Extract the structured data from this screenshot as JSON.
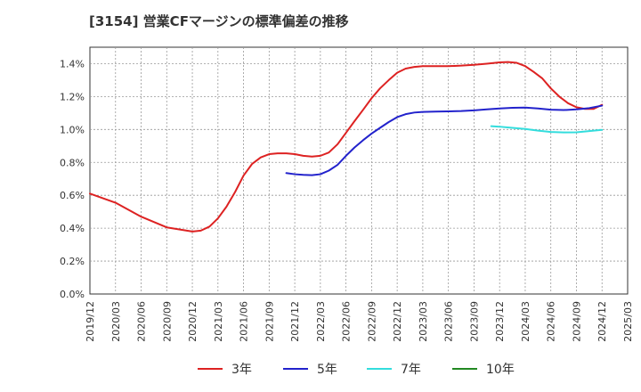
{
  "title": "[3154]  営業CFマージンの標準偏差の推移",
  "chart_data": {
    "type": "line",
    "x_labels": [
      "2019/12",
      "2020/03",
      "2020/06",
      "2020/09",
      "2020/12",
      "2021/03",
      "2021/06",
      "2021/09",
      "2021/12",
      "2022/03",
      "2022/06",
      "2022/09",
      "2022/12",
      "2023/03",
      "2023/06",
      "2023/09",
      "2023/12",
      "2024/03",
      "2024/06",
      "2024/09",
      "2024/12",
      "2025/03"
    ],
    "y_ticks": [
      "0.0%",
      "0.2%",
      "0.4%",
      "0.6%",
      "0.8%",
      "1.0%",
      "1.2%",
      "1.4%"
    ],
    "ylim": [
      0,
      1.5
    ],
    "grid": true,
    "legend_position": "bottom",
    "series": [
      {
        "name": "3年",
        "color": "#dd2222",
        "points": [
          [
            0,
            0.61
          ],
          [
            1,
            0.555
          ],
          [
            2,
            0.47
          ],
          [
            3,
            0.405
          ],
          [
            4,
            0.38
          ],
          [
            4.33,
            0.385
          ],
          [
            4.67,
            0.41
          ],
          [
            5,
            0.46
          ],
          [
            5.33,
            0.53
          ],
          [
            5.67,
            0.62
          ],
          [
            6,
            0.72
          ],
          [
            6.33,
            0.79
          ],
          [
            6.67,
            0.83
          ],
          [
            7,
            0.85
          ],
          [
            7.33,
            0.855
          ],
          [
            7.67,
            0.855
          ],
          [
            8,
            0.85
          ],
          [
            8.33,
            0.84
          ],
          [
            8.67,
            0.835
          ],
          [
            9,
            0.84
          ],
          [
            9.33,
            0.86
          ],
          [
            9.67,
            0.91
          ],
          [
            10,
            0.98
          ],
          [
            10.33,
            1.05
          ],
          [
            10.67,
            1.12
          ],
          [
            11,
            1.19
          ],
          [
            11.33,
            1.25
          ],
          [
            11.67,
            1.3
          ],
          [
            12,
            1.345
          ],
          [
            12.33,
            1.37
          ],
          [
            12.67,
            1.38
          ],
          [
            13,
            1.385
          ],
          [
            13.5,
            1.385
          ],
          [
            14,
            1.385
          ],
          [
            14.5,
            1.388
          ],
          [
            15,
            1.393
          ],
          [
            15.5,
            1.4
          ],
          [
            16,
            1.408
          ],
          [
            16.33,
            1.41
          ],
          [
            16.67,
            1.405
          ],
          [
            17,
            1.385
          ],
          [
            17.33,
            1.35
          ],
          [
            17.67,
            1.31
          ],
          [
            18,
            1.25
          ],
          [
            18.33,
            1.2
          ],
          [
            18.67,
            1.16
          ],
          [
            19,
            1.135
          ],
          [
            19.33,
            1.125
          ],
          [
            19.67,
            1.125
          ],
          [
            20,
            1.15
          ]
        ]
      },
      {
        "name": "5年",
        "color": "#2222cc",
        "points": [
          [
            7.67,
            0.735
          ],
          [
            8,
            0.728
          ],
          [
            8.33,
            0.724
          ],
          [
            8.67,
            0.722
          ],
          [
            9,
            0.728
          ],
          [
            9.33,
            0.75
          ],
          [
            9.67,
            0.785
          ],
          [
            10,
            0.84
          ],
          [
            10.33,
            0.89
          ],
          [
            10.67,
            0.935
          ],
          [
            11,
            0.975
          ],
          [
            11.33,
            1.01
          ],
          [
            11.67,
            1.045
          ],
          [
            12,
            1.075
          ],
          [
            12.33,
            1.093
          ],
          [
            12.67,
            1.103
          ],
          [
            13,
            1.107
          ],
          [
            13.5,
            1.109
          ],
          [
            14,
            1.11
          ],
          [
            14.5,
            1.112
          ],
          [
            15,
            1.116
          ],
          [
            15.5,
            1.122
          ],
          [
            16,
            1.128
          ],
          [
            16.5,
            1.132
          ],
          [
            17,
            1.133
          ],
          [
            17.5,
            1.128
          ],
          [
            18,
            1.12
          ],
          [
            18.5,
            1.118
          ],
          [
            19,
            1.122
          ],
          [
            19.5,
            1.13
          ],
          [
            20,
            1.145
          ]
        ]
      },
      {
        "name": "7年",
        "color": "#33dddd",
        "points": [
          [
            15.67,
            1.02
          ],
          [
            16,
            1.017
          ],
          [
            16.5,
            1.01
          ],
          [
            17,
            1.003
          ],
          [
            17.5,
            0.993
          ],
          [
            18,
            0.985
          ],
          [
            18.5,
            0.982
          ],
          [
            19,
            0.983
          ],
          [
            19.5,
            0.99
          ],
          [
            20,
            0.998
          ]
        ]
      },
      {
        "name": "10年",
        "color": "#228822",
        "points": []
      }
    ]
  }
}
